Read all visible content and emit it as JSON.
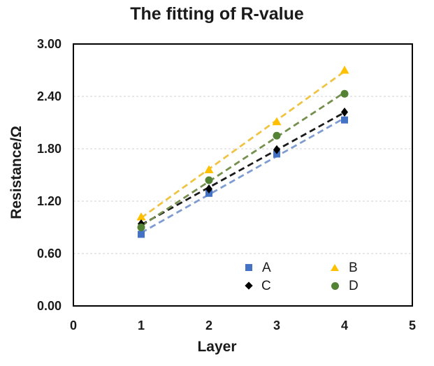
{
  "chart_data": {
    "type": "scatter",
    "title": "The fitting of R-value",
    "xlabel": "Layer",
    "ylabel": "Resistance/Ω",
    "xlim": [
      0,
      5
    ],
    "ylim": [
      0,
      3
    ],
    "x": [
      1,
      2,
      3,
      4
    ],
    "x_axis": {
      "tick_values": [
        0,
        1,
        2,
        3,
        4,
        5
      ],
      "tick_labels": [
        "0",
        "1",
        "2",
        "3",
        "4",
        "5"
      ]
    },
    "y_axis": {
      "tick_values": [
        0,
        0.6,
        1.2,
        1.8,
        2.4,
        3.0
      ],
      "tick_labels": [
        "0.00",
        "0.60",
        "1.20",
        "1.80",
        "2.40",
        "3.00"
      ]
    },
    "grid": "horizontal-dashed-at-inner-y-ticks",
    "legend": {
      "position": "inside-bottom-center-right",
      "columns": 2
    },
    "series": [
      {
        "name": "A",
        "marker": "square",
        "color": "#4472C4",
        "line_color": "#7E9CD1",
        "line_style": "dashed",
        "values": [
          0.82,
          1.29,
          1.74,
          2.13
        ],
        "trendline": "linear"
      },
      {
        "name": "B",
        "marker": "triangle",
        "color": "#FFC000",
        "line_color": "#EFC343",
        "line_style": "dashed",
        "values": [
          1.02,
          1.56,
          2.11,
          2.7
        ],
        "trendline": "linear"
      },
      {
        "name": "C",
        "marker": "diamond",
        "color": "#000000",
        "line_color": "#1A1A1A",
        "line_style": "dashed",
        "values": [
          0.94,
          1.34,
          1.79,
          2.22
        ],
        "trendline": "linear"
      },
      {
        "name": "D",
        "marker": "circle",
        "color": "#548235",
        "line_color": "#75904E",
        "line_style": "dashed",
        "values": [
          0.9,
          1.44,
          1.95,
          2.43
        ],
        "trendline": "linear"
      }
    ],
    "colors": {
      "grid": "#D9D9D9",
      "frame": "#000000",
      "text": "#1A1A1A"
    }
  }
}
